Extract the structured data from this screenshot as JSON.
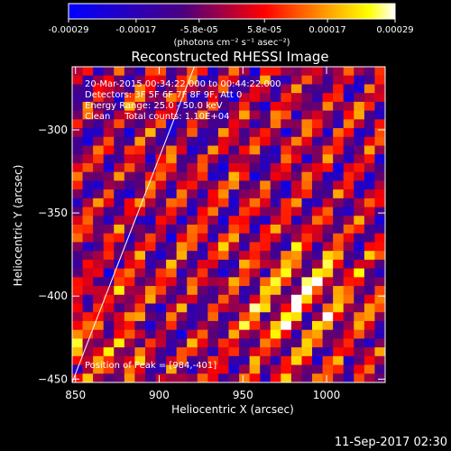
{
  "chart_data": {
    "type": "heatmap",
    "title": "Reconstructed RHESSI Image",
    "xlabel": "Heliocentric X (arcsec)",
    "ylabel": "Heliocentric Y (arcsec)",
    "xlim": [
      848,
      1035
    ],
    "ylim": [
      -452,
      -262
    ],
    "xticks": [
      850,
      900,
      950,
      1000
    ],
    "yticks": [
      -450,
      -400,
      -350,
      -300
    ],
    "xtick_labels": [
      "850",
      "900",
      "950",
      "1000"
    ],
    "ytick_labels": [
      "−450",
      "−400",
      "−350",
      "−300"
    ],
    "grid": false,
    "annotations": [
      "20-Mar-2015 00:34:22.000 to 00:44:22.000",
      "Detectors: 3F 5F 6F 7F 8F 9F, Att 0",
      "Energy Range: 25.0 - 50.0 keV",
      "Clean     Total counts: 1.10E+04"
    ],
    "peak_label": "Position of Peak = [984,-401]",
    "peak": [
      984,
      -401
    ],
    "limb_line": {
      "x": [
        848,
        921
      ],
      "y": [
        -452,
        -262
      ]
    },
    "colorbar": {
      "min": -0.00029,
      "max": 0.00029,
      "ticks": [
        -0.00029,
        -0.00017,
        -5.8e-05,
        5.8e-05,
        0.00017,
        0.00029
      ],
      "tick_labels": [
        "-0.00029",
        "-0.00017",
        "-5.8e-05",
        "5.8e-05",
        "0.00017",
        "0.00029"
      ],
      "unit_label": "(photons cm⁻² s⁻¹ asec⁻²)",
      "colors": [
        "#0000ff",
        "#4b0082",
        "#ff0000",
        "#ffa500",
        "#ffff00",
        "#ffffff"
      ]
    },
    "grid_cells": {
      "nx": 30,
      "ny": 36
    }
  },
  "footer_timestamp": "11-Sep-2017 02:30"
}
